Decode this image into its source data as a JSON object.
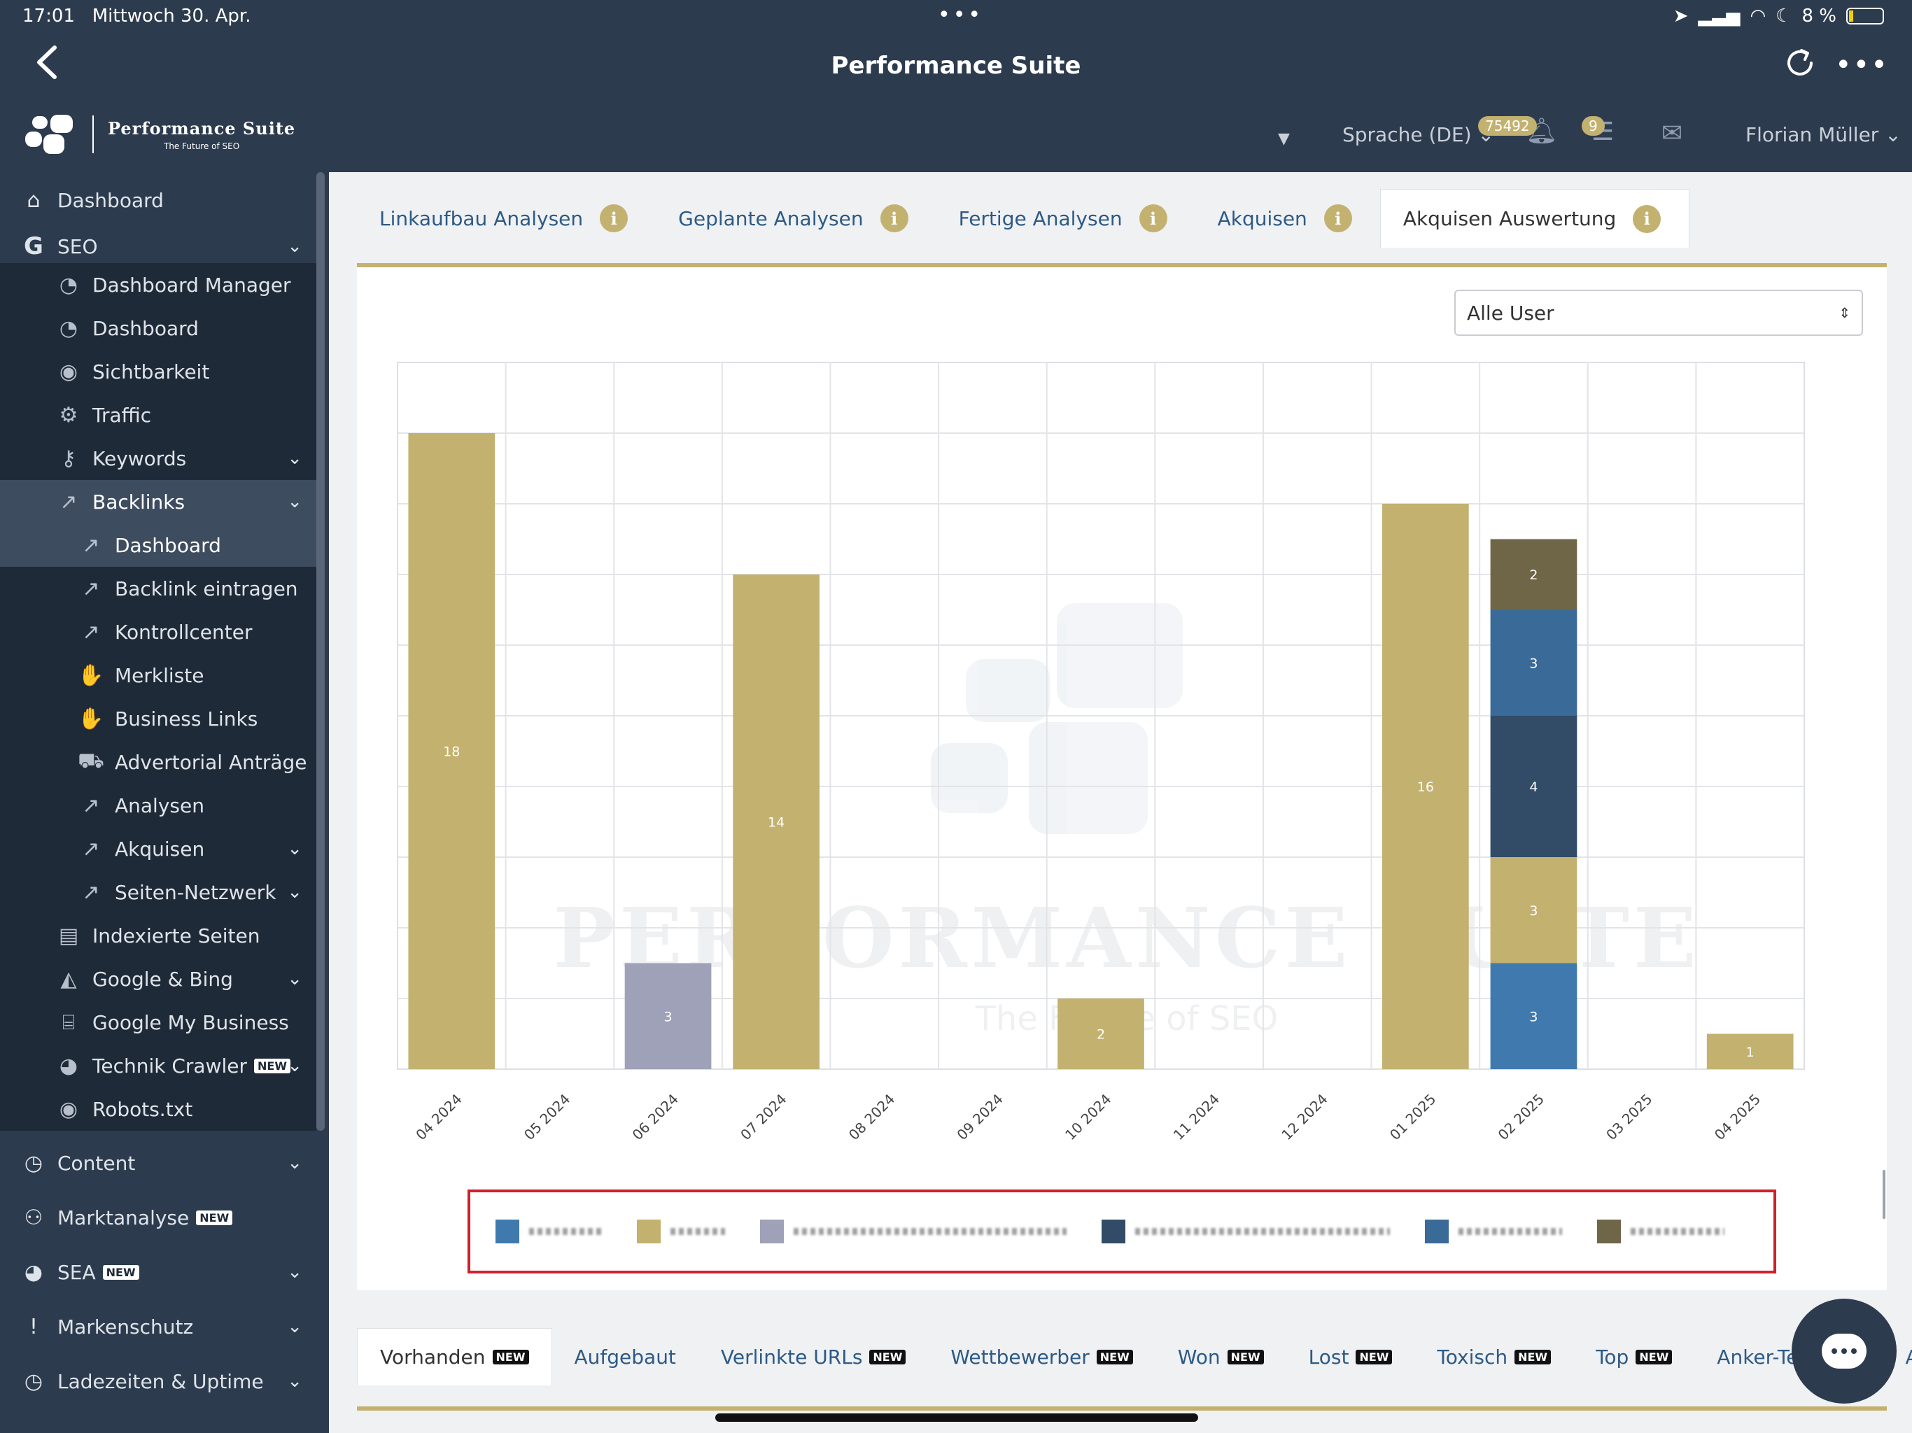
{
  "status": {
    "time": "17:01",
    "date": "Mittwoch 30. Apr.",
    "battery": "8 %"
  },
  "app": {
    "title": "Performance Suite"
  },
  "brand": {
    "name": "Performance Suite",
    "tagline": "The Future of SEO"
  },
  "header": {
    "language": "Sprache (DE)",
    "bell_count": "75492",
    "tasks_count": "9",
    "user": "Florian Müller"
  },
  "sidebar": {
    "items": [
      {
        "label": "Dashboard",
        "icon": "home-icon"
      },
      {
        "label": "SEO",
        "icon": "google-icon"
      },
      {
        "label": "Dashboard Manager",
        "icon": "gauge-icon"
      },
      {
        "label": "Dashboard",
        "icon": "gauge-icon"
      },
      {
        "label": "Sichtbarkeit",
        "icon": "eye-icon"
      },
      {
        "label": "Traffic",
        "icon": "gears-icon"
      },
      {
        "label": "Keywords",
        "icon": "key-icon"
      },
      {
        "label": "Backlinks",
        "icon": "external-link-icon"
      },
      {
        "label": "Dashboard",
        "icon": "external-link-icon"
      },
      {
        "label": "Backlink eintragen",
        "icon": "external-link-icon"
      },
      {
        "label": "Kontrollcenter",
        "icon": "external-link-icon"
      },
      {
        "label": "Merkliste",
        "icon": "handshake-icon"
      },
      {
        "label": "Business Links",
        "icon": "handshake-icon"
      },
      {
        "label": "Advertorial Anträge",
        "icon": "cart-icon"
      },
      {
        "label": "Analysen",
        "icon": "external-link-icon"
      },
      {
        "label": "Akquisen",
        "icon": "external-link-icon"
      },
      {
        "label": "Seiten-Netzwerk",
        "icon": "external-link-icon"
      },
      {
        "label": "Indexierte Seiten",
        "icon": "file-icon"
      },
      {
        "label": "Google & Bing",
        "icon": "area-chart-icon"
      },
      {
        "label": "Google My Business",
        "icon": "store-icon"
      },
      {
        "label": "Technik Crawler",
        "icon": "pie-icon"
      },
      {
        "label": "Robots.txt",
        "icon": "eye-icon"
      },
      {
        "label": "Content",
        "icon": "clock-icon"
      },
      {
        "label": "Marktanalyse",
        "icon": "users-icon"
      },
      {
        "label": "SEA",
        "icon": "pie-icon"
      },
      {
        "label": "Markenschutz",
        "icon": "exclamation-icon"
      },
      {
        "label": "Ladezeiten & Uptime",
        "icon": "clock-icon"
      }
    ],
    "new_label": "NEW"
  },
  "tabs": [
    "Linkaufbau Analysen",
    "Geplante Analysen",
    "Fertige Analysen",
    "Akquisen",
    "Akquisen Auswertung"
  ],
  "info_glyph": "i",
  "filter": {
    "selected": "Alle User"
  },
  "watermark": {
    "name": "Performance Suite",
    "tagline": "The Future of SEO"
  },
  "colors": {
    "gold": "#c3b16f",
    "lavender": "#9ea1b8",
    "blue": "#3f79ae",
    "darkblue": "#324b67",
    "steel": "#3a5b7d",
    "olive": "#6f6648",
    "legend_border": "#d2202a"
  },
  "chart_data": {
    "type": "bar",
    "stacked": true,
    "categories": [
      "04 2024",
      "05 2024",
      "06 2024",
      "07 2024",
      "08 2024",
      "09 2024",
      "10 2024",
      "11 2024",
      "12 2024",
      "01 2025",
      "02 2025",
      "03 2025",
      "04 2025"
    ],
    "ylim": [
      0,
      20
    ],
    "grid": true,
    "legend_position": "bottom",
    "series": [
      {
        "color": "#3f79ae",
        "values": [
          0,
          0,
          0,
          0,
          0,
          0,
          0,
          0,
          0,
          0,
          3,
          0,
          0
        ]
      },
      {
        "color": "#c3b16f",
        "values": [
          18,
          0,
          0,
          14,
          0,
          0,
          2,
          0,
          0,
          16,
          3,
          0,
          1
        ]
      },
      {
        "color": "#9ea1b8",
        "values": [
          0,
          0,
          3,
          0,
          0,
          0,
          0,
          0,
          0,
          0,
          0,
          0,
          0
        ]
      },
      {
        "color": "#324b67",
        "values": [
          0,
          0,
          0,
          0,
          0,
          0,
          0,
          0,
          0,
          0,
          4,
          0,
          0
        ]
      },
      {
        "color": "#3a6a98",
        "values": [
          0,
          0,
          0,
          0,
          0,
          0,
          0,
          0,
          0,
          0,
          3,
          0,
          0
        ]
      },
      {
        "color": "#6f6648",
        "values": [
          0,
          0,
          0,
          0,
          0,
          0,
          0,
          0,
          0,
          0,
          2,
          0,
          0
        ]
      }
    ]
  },
  "bottom_tabs": [
    {
      "label": "Vorhanden",
      "new": true
    },
    {
      "label": "Aufgebaut",
      "new": false
    },
    {
      "label": "Verlinkte URLs",
      "new": true
    },
    {
      "label": "Wettbewerber",
      "new": true
    },
    {
      "label": "Won",
      "new": true
    },
    {
      "label": "Lost",
      "new": true
    },
    {
      "label": "Toxisch",
      "new": true
    },
    {
      "label": "Top",
      "new": true
    },
    {
      "label": "Anker-Text",
      "new": true
    },
    {
      "label": "Ac",
      "new": false
    }
  ]
}
